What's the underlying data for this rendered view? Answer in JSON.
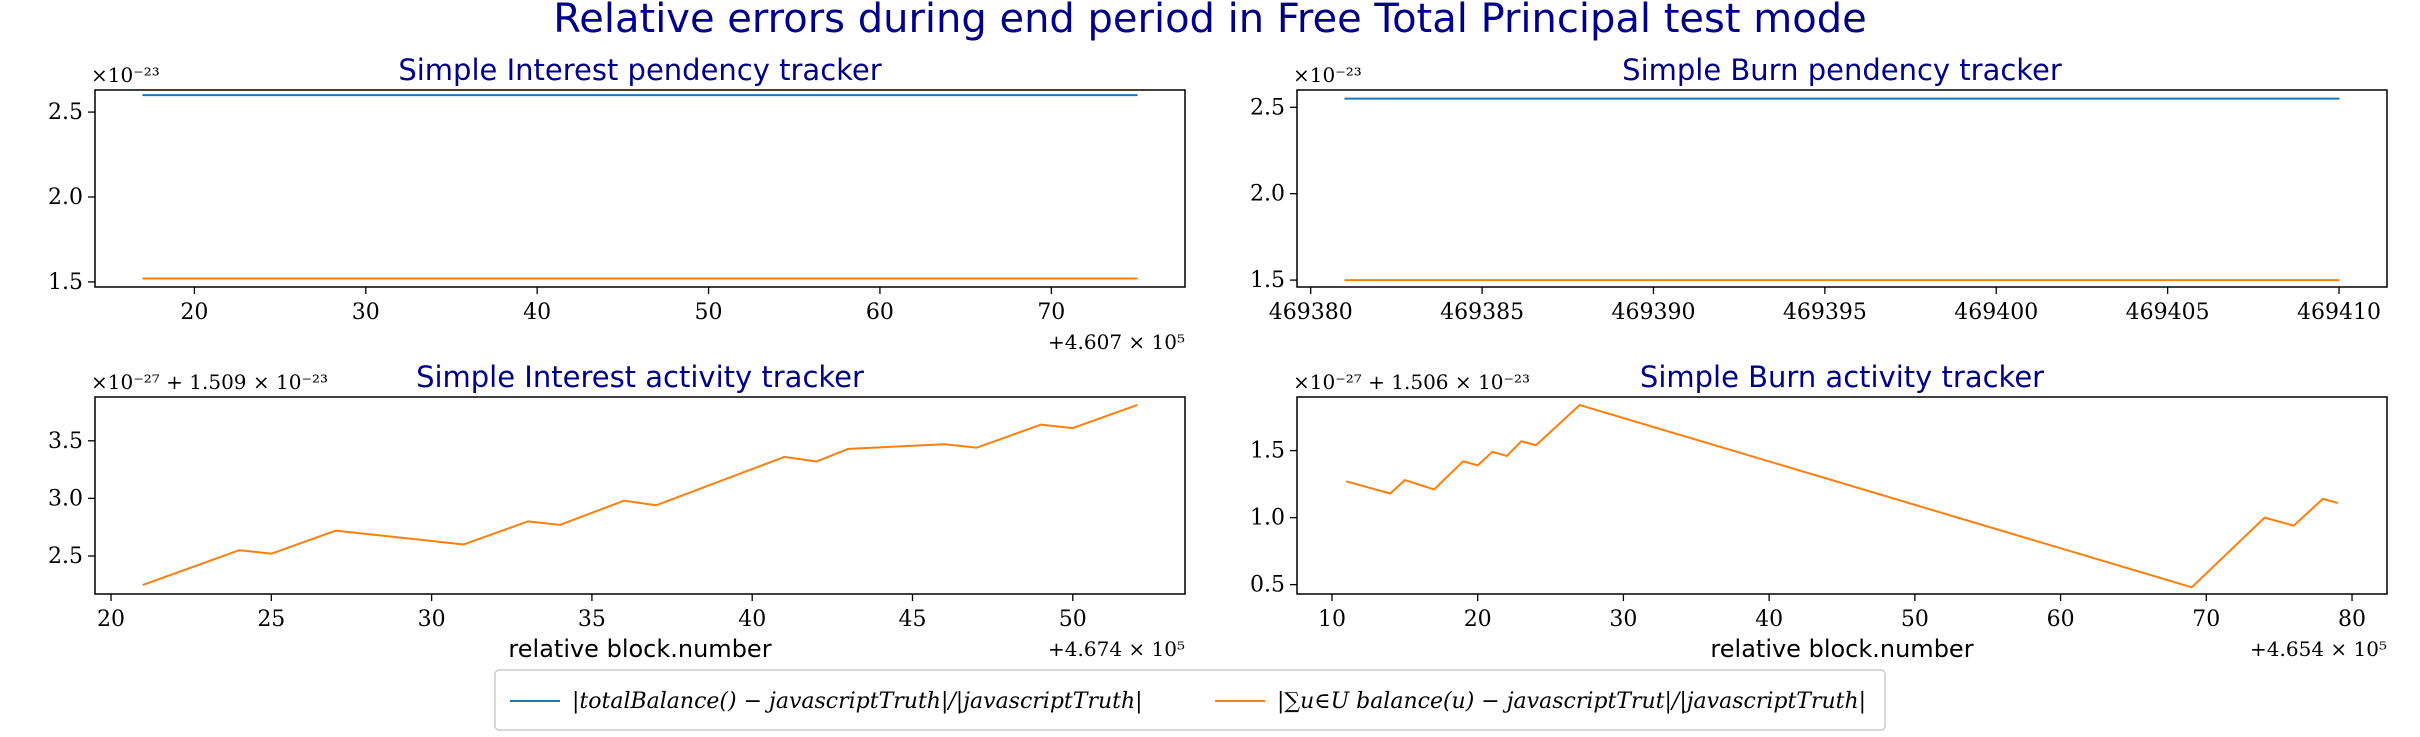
{
  "title": "Relative errors during end period in Free Total Principal test mode",
  "colors": {
    "series1": "#1f77b4",
    "series2": "#ff7f0e",
    "title": "#00008b"
  },
  "legend": {
    "items": [
      {
        "label": "|totalBalance() − javascriptTruth|/|javascriptTruth|",
        "color": "#1f77b4"
      },
      {
        "label": "|∑u∈U balance(u) − javascriptTrut|/|javascriptTruth|",
        "color": "#ff7f0e"
      }
    ]
  },
  "chart_data": [
    {
      "type": "line",
      "title": "Simple Interest pendency tracker",
      "xlabel": "",
      "x_offset_label": "+4.607 × 10⁵",
      "y_offset_label": "×10⁻²³",
      "xlim": [
        14.2,
        77.8
      ],
      "ylim": [
        1.47,
        2.63
      ],
      "xticks": [
        20,
        30,
        40,
        50,
        60,
        70
      ],
      "xtick_labels": [
        "20",
        "30",
        "40",
        "50",
        "60",
        "70"
      ],
      "yticks": [
        1.5,
        2.0,
        2.5
      ],
      "ytick_labels": [
        "1.5",
        "2.0",
        "2.5"
      ],
      "series": [
        {
          "color": "#1f77b4",
          "x": [
            17,
            75
          ],
          "y": [
            2.6,
            2.6
          ]
        },
        {
          "color": "#ff7f0e",
          "x": [
            17,
            75
          ],
          "y": [
            1.52,
            1.52
          ]
        }
      ]
    },
    {
      "type": "line",
      "title": "Simple Burn pendency tracker",
      "xlabel": "",
      "x_offset_label": "",
      "y_offset_label": "×10⁻²³",
      "xlim": [
        469379.6,
        469411.4
      ],
      "ylim": [
        1.46,
        2.6
      ],
      "xticks": [
        469380,
        469385,
        469390,
        469395,
        469400,
        469405,
        469410
      ],
      "xtick_labels": [
        "469380",
        "469385",
        "469390",
        "469395",
        "469400",
        "469405",
        "469410"
      ],
      "yticks": [
        1.5,
        2.0,
        2.5
      ],
      "ytick_labels": [
        "1.5",
        "2.0",
        "2.5"
      ],
      "series": [
        {
          "color": "#1f77b4",
          "x": [
            469381,
            469410
          ],
          "y": [
            2.55,
            2.55
          ]
        },
        {
          "color": "#ff7f0e",
          "x": [
            469381,
            469410
          ],
          "y": [
            1.5,
            1.5
          ]
        }
      ]
    },
    {
      "type": "line",
      "title": "Simple Interest activity tracker",
      "xlabel": "relative block.number",
      "x_offset_label": "+4.674 × 10⁵",
      "y_offset_label": "×10⁻²⁷ + 1.509 × 10⁻²³",
      "xlim": [
        19.5,
        53.5
      ],
      "ylim": [
        2.17,
        3.88
      ],
      "xticks": [
        20,
        25,
        30,
        35,
        40,
        45,
        50
      ],
      "xtick_labels": [
        "20",
        "25",
        "30",
        "35",
        "40",
        "45",
        "50"
      ],
      "yticks": [
        2.5,
        3.0,
        3.5
      ],
      "ytick_labels": [
        "2.5",
        "3.0",
        "3.5"
      ],
      "series": [
        {
          "color": "#ff7f0e",
          "x": [
            21,
            24,
            25,
            27,
            31,
            33,
            34,
            36,
            37,
            41,
            42,
            43,
            46,
            47,
            49,
            50,
            52
          ],
          "y": [
            2.25,
            2.55,
            2.52,
            2.72,
            2.6,
            2.8,
            2.77,
            2.98,
            2.94,
            3.36,
            3.32,
            3.43,
            3.47,
            3.44,
            3.64,
            3.61,
            3.81
          ]
        }
      ]
    },
    {
      "type": "line",
      "title": "Simple Burn activity tracker",
      "xlabel": "relative block.number",
      "x_offset_label": "+4.654 × 10⁵",
      "y_offset_label": "×10⁻²⁷ + 1.506 × 10⁻²³",
      "xlim": [
        7.6,
        82.4
      ],
      "ylim": [
        0.43,
        1.9
      ],
      "xticks": [
        10,
        20,
        30,
        40,
        50,
        60,
        70,
        80
      ],
      "xtick_labels": [
        "10",
        "20",
        "30",
        "40",
        "50",
        "60",
        "70",
        "80"
      ],
      "yticks": [
        0.5,
        1.0,
        1.5
      ],
      "ytick_labels": [
        "0.5",
        "1.0",
        "1.5"
      ],
      "series": [
        {
          "color": "#ff7f0e",
          "x": [
            11,
            14,
            15,
            17,
            19,
            20,
            21,
            22,
            23,
            24,
            27,
            69,
            74,
            76,
            78,
            79
          ],
          "y": [
            1.27,
            1.18,
            1.28,
            1.21,
            1.42,
            1.39,
            1.49,
            1.46,
            1.57,
            1.54,
            1.84,
            0.48,
            1.0,
            0.94,
            1.14,
            1.11
          ]
        }
      ]
    }
  ]
}
